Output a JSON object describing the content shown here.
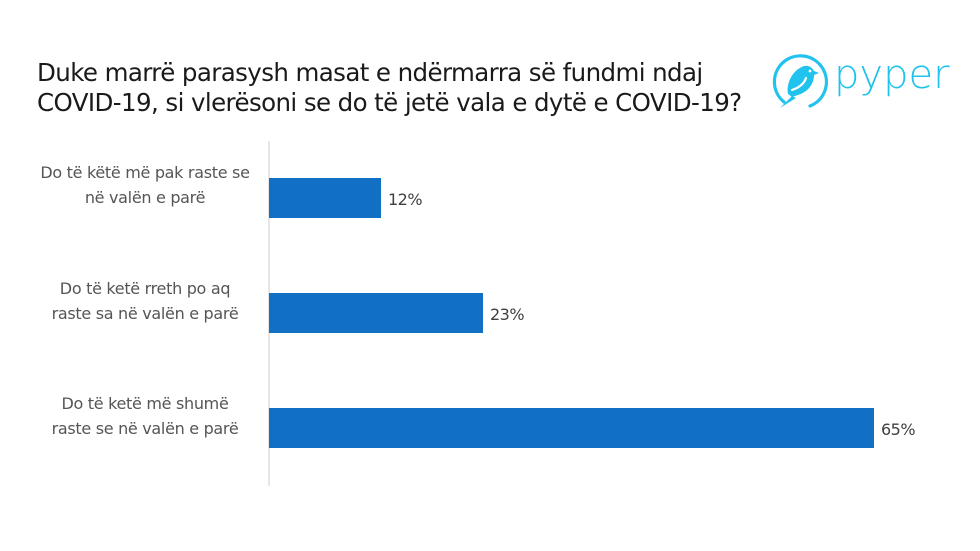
{
  "header": {
    "title": "Duke marrë parasysh masat e ndërmarra së fundmi ndaj COVID-19, si vlerësoni se do të jetë vala e dytë e COVID-19?",
    "logo_text": "pyper",
    "logo_icon": "bird-in-circle-icon",
    "logo_color": "#1fc3ee"
  },
  "bar_color": "#1170c4",
  "chart_data": {
    "type": "bar",
    "orientation": "horizontal",
    "title": "Duke marrë parasysh masat e ndërmarra së fundmi ndaj COVID-19, si vlerësoni se do të jetë vala e dytë e COVID-19?",
    "categories": [
      "Do të këtë më pak raste se në valën e parë",
      "Do të ketë rreth po aq raste sa në valën e parë",
      "Do të ketë më shumë raste se në valën e parë"
    ],
    "values": [
      12,
      23,
      65
    ],
    "value_labels": [
      "12%",
      "23%",
      "65%"
    ],
    "xlabel": "",
    "ylabel": "",
    "xlim": [
      0,
      70
    ],
    "grid": false,
    "legend": null,
    "unit": "%"
  },
  "rows": [
    {
      "label": "Do të këtë më pak raste se në valën e parë",
      "value": 12,
      "value_label": "12%"
    },
    {
      "label": "Do të ketë rreth po aq raste sa në valën e parë",
      "value": 23,
      "value_label": "23%"
    },
    {
      "label": "Do të ketë më shumë raste se në valën e parë",
      "value": 65,
      "value_label": "65%"
    }
  ]
}
